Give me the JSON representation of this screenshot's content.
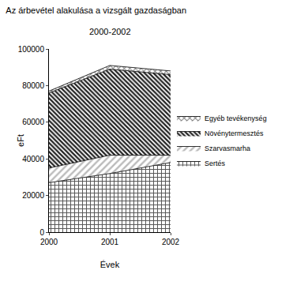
{
  "chart_data": {
    "type": "area",
    "title": "Az árbevétel alakulása a vizsgált gazdaságban",
    "subtitle": "2000-2002",
    "x_label": "Évek",
    "y_label": "eFt",
    "x": [
      2000,
      2001,
      2002
    ],
    "stacked": true,
    "series": [
      {
        "name": "Sertés",
        "color": "#555555",
        "values": [
          27000,
          32000,
          38000
        ]
      },
      {
        "name": "Szarvasmarha",
        "color": "#bbbbbb",
        "values": [
          8000,
          10000,
          4000
        ]
      },
      {
        "name": "Növénytermesztés",
        "color": "#222222",
        "values": [
          41000,
          47000,
          44000
        ]
      },
      {
        "name": "Egyéb tevékenység",
        "color": "#777777",
        "values": [
          1000,
          2000,
          2000
        ]
      }
    ],
    "xlim": [
      2000,
      2002
    ],
    "xticks": [
      2000,
      2001,
      2002
    ],
    "ylim": [
      0,
      100000
    ],
    "yticks": [
      0,
      20000,
      40000,
      60000,
      80000,
      100000
    ],
    "grid": false,
    "legend": "right"
  }
}
